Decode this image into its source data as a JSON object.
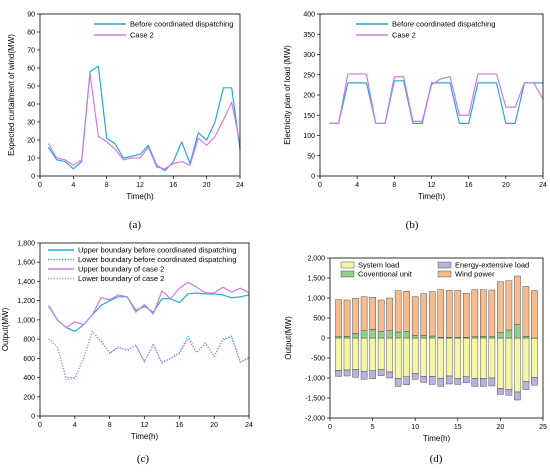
{
  "chart_data": [
    {
      "type": "line",
      "caption": "(a)",
      "xlabel": "Time(h)",
      "ylabel": "Expected curtailment of wind(MW)",
      "xlim": [
        0,
        24
      ],
      "ylim": [
        0,
        90
      ],
      "xticks": [
        0,
        4,
        8,
        12,
        16,
        20,
        24
      ],
      "yticks": [
        0,
        10,
        20,
        30,
        40,
        50,
        60,
        70,
        80,
        90
      ],
      "legend_position": "top-center",
      "x": [
        1,
        2,
        3,
        4,
        5,
        6,
        7,
        8,
        9,
        10,
        11,
        12,
        13,
        14,
        15,
        16,
        17,
        18,
        19,
        20,
        21,
        22,
        23,
        24
      ],
      "series": [
        {
          "name": "Before coordinated dispatching",
          "color": "#2aa6d6",
          "dash": "solid",
          "values": [
            16,
            9,
            8,
            4,
            8,
            58,
            61,
            21,
            18,
            10,
            11,
            12,
            17,
            6,
            3,
            8,
            19,
            7,
            24,
            20,
            30,
            49,
            49,
            15
          ]
        },
        {
          "name": "Case 2",
          "color": "#d27be0",
          "dash": "solid",
          "values": [
            18,
            10,
            9,
            6,
            9,
            57,
            22,
            19,
            15,
            9,
            10,
            10,
            16,
            5,
            4,
            7,
            8,
            6,
            21,
            17,
            22,
            31,
            41,
            18
          ]
        }
      ]
    },
    {
      "type": "line",
      "caption": "(b)",
      "xlabel": "Time(h)",
      "ylabel": "Electricity plan of load (MW)",
      "xlim": [
        0,
        24
      ],
      "ylim": [
        0,
        400
      ],
      "xticks": [
        0,
        4,
        8,
        12,
        16,
        20,
        24
      ],
      "yticks": [
        0,
        50,
        100,
        150,
        200,
        250,
        300,
        350,
        400
      ],
      "legend_position": "top-center",
      "x": [
        1,
        2,
        3,
        4,
        5,
        6,
        7,
        8,
        9,
        10,
        11,
        12,
        13,
        14,
        15,
        16,
        17,
        18,
        19,
        20,
        21,
        22,
        23,
        24
      ],
      "series": [
        {
          "name": "Before coordinated dispatching",
          "color": "#2aa6d6",
          "dash": "solid",
          "values": [
            130,
            130,
            230,
            230,
            230,
            130,
            130,
            235,
            235,
            130,
            130,
            230,
            230,
            230,
            130,
            130,
            230,
            230,
            230,
            130,
            130,
            230,
            230,
            230
          ]
        },
        {
          "name": "Case 2",
          "color": "#d27be0",
          "dash": "solid",
          "values": [
            130,
            130,
            252,
            252,
            252,
            130,
            130,
            245,
            245,
            135,
            135,
            225,
            240,
            245,
            150,
            150,
            252,
            252,
            252,
            170,
            170,
            230,
            230,
            190
          ]
        }
      ]
    },
    {
      "type": "line",
      "caption": "(c)",
      "xlabel": "Time(h)",
      "ylabel": "Output(MW)",
      "xlim": [
        0,
        24
      ],
      "ylim": [
        0,
        1800
      ],
      "xticks": [
        0,
        4,
        8,
        12,
        16,
        20,
        24
      ],
      "yticks": [
        0,
        200,
        400,
        600,
        800,
        1000,
        1200,
        1400,
        1600,
        1800
      ],
      "ytick_labels": [
        "0",
        "200",
        "400",
        "600",
        "800",
        "1,000",
        "1,200",
        "1,400",
        "1,600",
        "1,800"
      ],
      "legend_position": "top-center",
      "x": [
        1,
        2,
        3,
        4,
        5,
        6,
        7,
        8,
        9,
        10,
        11,
        12,
        13,
        14,
        15,
        16,
        17,
        18,
        19,
        20,
        21,
        22,
        23,
        24
      ],
      "series": [
        {
          "name": "Upper boundary before coordinated dispatching",
          "color": "#2aa6d6",
          "dash": "solid",
          "values": [
            1140,
            1000,
            920,
            880,
            950,
            1050,
            1150,
            1200,
            1240,
            1240,
            1100,
            1140,
            1080,
            1220,
            1220,
            1180,
            1270,
            1280,
            1270,
            1270,
            1260,
            1230,
            1240,
            1260
          ]
        },
        {
          "name": "Lower boundary before coordinated dispatching",
          "color": "#2aa6d6",
          "dash": "dot",
          "values": [
            800,
            720,
            400,
            400,
            600,
            880,
            780,
            650,
            720,
            680,
            740,
            560,
            750,
            550,
            600,
            650,
            830,
            660,
            760,
            620,
            800,
            830,
            560,
            610
          ]
        },
        {
          "name": "Upper boundary of case 2",
          "color": "#d27be0",
          "dash": "solid",
          "values": [
            1150,
            1000,
            920,
            980,
            950,
            1050,
            1230,
            1210,
            1260,
            1240,
            1080,
            1160,
            1060,
            1300,
            1220,
            1330,
            1390,
            1340,
            1280,
            1280,
            1340,
            1290,
            1330,
            1280
          ]
        },
        {
          "name": "Lower boundary of case 2",
          "color": "#d27be0",
          "dash": "dot",
          "values": [
            800,
            720,
            380,
            390,
            600,
            880,
            770,
            660,
            710,
            690,
            730,
            570,
            740,
            560,
            600,
            660,
            800,
            660,
            760,
            620,
            790,
            820,
            560,
            600
          ]
        }
      ]
    },
    {
      "type": "bar",
      "stacked": true,
      "caption": "(d)",
      "xlabel": "Time(h)",
      "ylabel": "Output(MW)",
      "xlim": [
        0,
        25
      ],
      "ylim": [
        -2000,
        2000
      ],
      "xticks": [
        0,
        5,
        10,
        15,
        20,
        25
      ],
      "yticks": [
        -2000,
        -1500,
        -1000,
        -500,
        0,
        500,
        1000,
        1500,
        2000
      ],
      "ytick_labels": [
        "-2,000",
        "-1,500",
        "-1,000",
        "-500",
        "0",
        "500",
        "1,000",
        "1,500",
        "2,000"
      ],
      "legend_position": "top",
      "x": [
        1,
        2,
        3,
        4,
        5,
        6,
        7,
        8,
        9,
        10,
        11,
        12,
        13,
        14,
        15,
        16,
        17,
        18,
        19,
        20,
        21,
        22,
        23,
        24
      ],
      "series": [
        {
          "name": "System load",
          "color": "#f5f5a6",
          "values": [
            -810,
            -800,
            -780,
            -830,
            -820,
            -790,
            -850,
            -1010,
            -970,
            -880,
            -960,
            -960,
            -1010,
            -950,
            -1010,
            -970,
            -1010,
            -1010,
            -1000,
            -1260,
            -1280,
            -1350,
            -1090,
            -980
          ]
        },
        {
          "name": "Energy-extensive load",
          "color": "#b9b3df",
          "values": [
            -150,
            -150,
            -200,
            -200,
            -200,
            -150,
            -150,
            -200,
            -200,
            -150,
            -150,
            -200,
            -200,
            -200,
            -150,
            -150,
            -200,
            -200,
            -200,
            -150,
            -150,
            -200,
            -200,
            -200
          ]
        },
        {
          "name": "Coventional unit",
          "color": "#8fcf8f",
          "values": [
            30,
            40,
            110,
            180,
            210,
            160,
            180,
            150,
            170,
            60,
            60,
            50,
            20,
            20,
            20,
            20,
            30,
            40,
            30,
            130,
            200,
            330,
            40,
            0
          ]
        },
        {
          "name": "Wind power",
          "color": "#f6bb8f",
          "values": [
            930,
            910,
            880,
            850,
            810,
            790,
            820,
            1030,
            1000,
            970,
            1050,
            1110,
            1190,
            1170,
            1170,
            1100,
            1180,
            1170,
            1170,
            1280,
            1230,
            1220,
            1250,
            1180
          ]
        }
      ]
    }
  ]
}
